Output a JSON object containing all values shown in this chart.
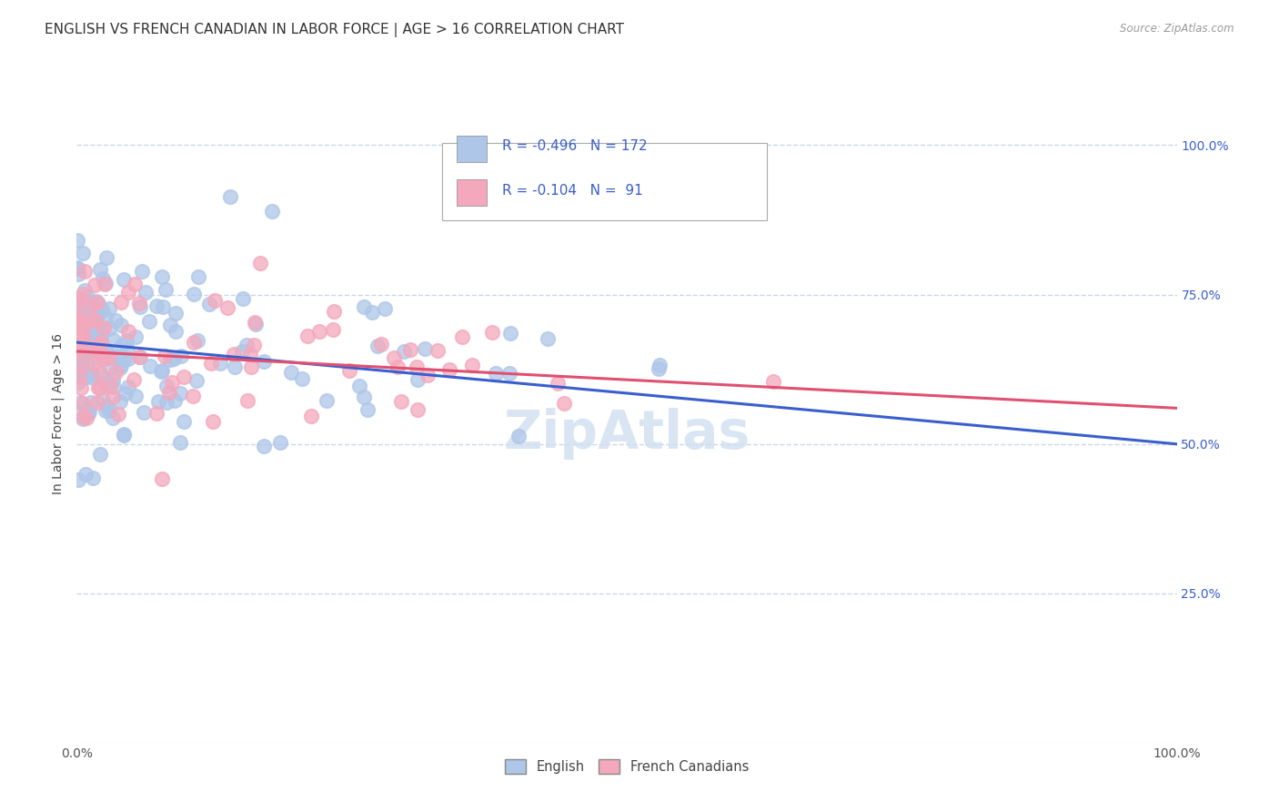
{
  "title": "ENGLISH VS FRENCH CANADIAN IN LABOR FORCE | AGE > 16 CORRELATION CHART",
  "source": "Source: ZipAtlas.com",
  "ylabel": "In Labor Force | Age > 16",
  "xlim": [
    0.0,
    1.0
  ],
  "ylim": [
    0.0,
    1.1
  ],
  "ytick_labels": [
    "25.0%",
    "50.0%",
    "75.0%",
    "100.0%"
  ],
  "ytick_vals": [
    0.25,
    0.5,
    0.75,
    1.0
  ],
  "english_color": "#aec6e8",
  "french_color": "#f4a8bc",
  "english_line_color": "#3a5fcd",
  "french_line_color": "#e05070",
  "background_color": "#ffffff",
  "grid_color": "#c8d8ea",
  "title_fontsize": 11,
  "axis_label_fontsize": 10,
  "tick_fontsize": 10,
  "watermark_color": "#d0dff0",
  "eng_line_start_y": 0.67,
  "eng_line_end_y": 0.5,
  "fr_line_start_y": 0.655,
  "fr_line_end_y": 0.56
}
